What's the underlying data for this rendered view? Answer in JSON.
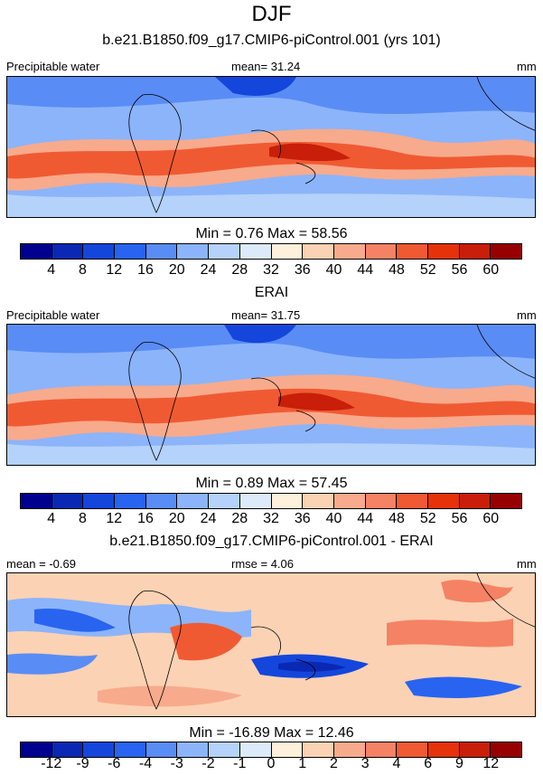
{
  "title": "DJF",
  "colors": {
    "abs_scale": [
      "#00008f",
      "#0a28b4",
      "#1446dc",
      "#2864f0",
      "#5a8cf5",
      "#8cb4fa",
      "#b4d2fa",
      "#dceafa",
      "#fff0dc",
      "#fcd2b4",
      "#f8aa8c",
      "#f58264",
      "#f05a32",
      "#e6320a",
      "#c81e0a",
      "#960000"
    ],
    "diff_scale": [
      "#00008f",
      "#0a28b4",
      "#1446dc",
      "#2864f0",
      "#5a8cf5",
      "#8cb4fa",
      "#b4d2fa",
      "#dceafa",
      "#fff0dc",
      "#fcd2b4",
      "#f8aa8c",
      "#f58264",
      "#f05a32",
      "#e6320a",
      "#c81e0a",
      "#960000"
    ]
  },
  "panels": [
    {
      "subtitle": "b.e21.B1850.f09_g17.CMIP6-piControl.001 (yrs 101)",
      "left_label": "Precipitable water",
      "center_label": "mean=  31.24",
      "right_label": "mm",
      "minmax": "Min =   0.76 Max =  58.56",
      "ticks": [
        "4",
        "8",
        "12",
        "16",
        "20",
        "24",
        "28",
        "32",
        "36",
        "40",
        "44",
        "48",
        "52",
        "56",
        "60"
      ],
      "kind": "abs"
    },
    {
      "subtitle": "ERAI",
      "left_label": "Precipitable water",
      "center_label": "mean=  31.75",
      "right_label": "mm",
      "minmax": "Min =   0.89 Max =  57.45",
      "ticks": [
        "4",
        "8",
        "12",
        "16",
        "20",
        "24",
        "28",
        "32",
        "36",
        "40",
        "44",
        "48",
        "52",
        "56",
        "60"
      ],
      "kind": "abs"
    },
    {
      "subtitle": "b.e21.B1850.f09_g17.CMIP6-piControl.001 - ERAI",
      "left_label": "mean =  -0.69",
      "center_label": "rmse =   4.06",
      "right_label": "mm",
      "minmax": "Min = -16.89 Max =  12.46",
      "ticks": [
        "-12",
        "-9",
        "-6",
        "-4",
        "-3",
        "-2",
        "-1",
        "0",
        "1",
        "2",
        "3",
        "4",
        "6",
        "9",
        "12"
      ],
      "kind": "diff"
    }
  ]
}
